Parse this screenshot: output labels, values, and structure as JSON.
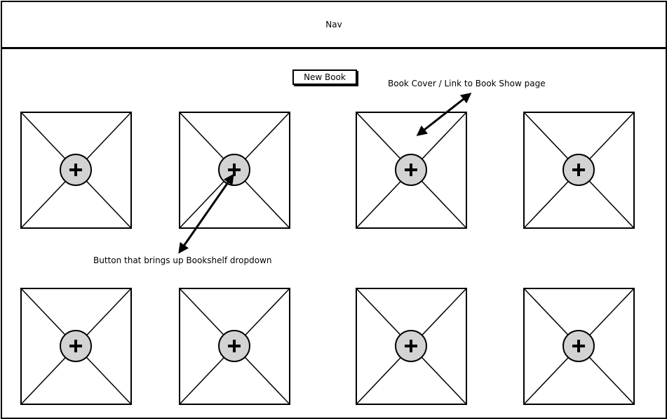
{
  "nav": {
    "label": "Nav"
  },
  "toolbar": {
    "new_book_label": "New Book"
  },
  "annotations": {
    "cover_link": "Book Cover / Link to Book Show page",
    "shelf_button": "Button that brings up Bookshelf dropdown"
  },
  "books": [
    {
      "row": 1,
      "col": 1
    },
    {
      "row": 1,
      "col": 2
    },
    {
      "row": 1,
      "col": 3
    },
    {
      "row": 1,
      "col": 4
    },
    {
      "row": 2,
      "col": 1
    },
    {
      "row": 2,
      "col": 2
    },
    {
      "row": 2,
      "col": 3
    },
    {
      "row": 2,
      "col": 4
    }
  ],
  "icons": {
    "cover": "image-placeholder-icon",
    "shelf_button": "plus-icon"
  },
  "colors": {
    "line": "#000000",
    "button_fill": "#d3d3d3",
    "background": "#ffffff"
  }
}
